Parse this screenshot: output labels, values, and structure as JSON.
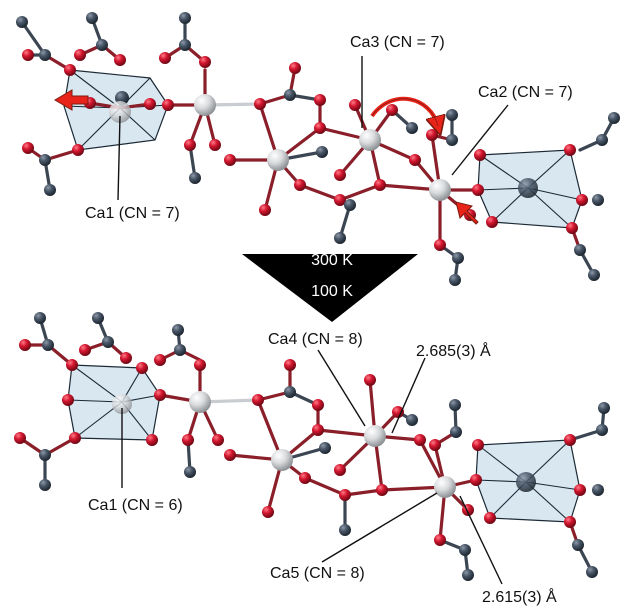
{
  "top_panel": {
    "ca1_label": "Ca1 (CN = 7)",
    "ca2_label": "Ca2 (CN = 7)",
    "ca3_label": "Ca3 (CN = 7)"
  },
  "transition_arrow": {
    "upper_temperature": "300 K",
    "lower_temperature": "100 K"
  },
  "bottom_panel": {
    "ca1_label": "Ca1 (CN = 6)",
    "ca4_label": "Ca4 (CN = 8)",
    "ca5_label": "Ca5 (CN = 8)",
    "distance_upper": "2.685(3) Å",
    "distance_lower": "2.615(3) Å"
  },
  "colors": {
    "oxygen": "#c8102e",
    "carbon": "#3c4653",
    "calcium": "#d4d6d8",
    "polyhedron": "#b9d3e6",
    "highlight_arrow": "#e8241a",
    "transition_arrow": "#000000"
  }
}
